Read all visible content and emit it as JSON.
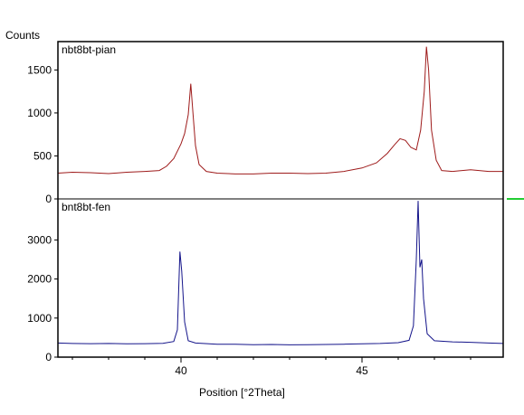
{
  "chart_data": {
    "type": "line",
    "ylabel": "Counts",
    "xlabel": "Position [°2Theta]",
    "xlim": [
      36.6,
      48.9
    ],
    "x_ticks": [
      40,
      45
    ],
    "x_tick_labels": [
      "40",
      "45"
    ],
    "panels": [
      {
        "series_name": "nbt8bt-pian",
        "color": "#9e1b1b",
        "ylim": [
          0,
          1830
        ],
        "y_ticks": [
          0,
          500,
          1000,
          1500
        ],
        "y_tick_labels": [
          "0",
          "500",
          "1000",
          "1500"
        ],
        "points": [
          [
            36.6,
            300
          ],
          [
            37.0,
            310
          ],
          [
            37.5,
            305
          ],
          [
            38.0,
            295
          ],
          [
            38.5,
            310
          ],
          [
            39.0,
            320
          ],
          [
            39.4,
            330
          ],
          [
            39.6,
            380
          ],
          [
            39.8,
            470
          ],
          [
            40.0,
            640
          ],
          [
            40.1,
            760
          ],
          [
            40.2,
            980
          ],
          [
            40.27,
            1340
          ],
          [
            40.33,
            1000
          ],
          [
            40.4,
            620
          ],
          [
            40.5,
            400
          ],
          [
            40.7,
            320
          ],
          [
            41.0,
            300
          ],
          [
            41.5,
            290
          ],
          [
            42.0,
            290
          ],
          [
            42.5,
            300
          ],
          [
            43.0,
            300
          ],
          [
            43.5,
            295
          ],
          [
            44.0,
            300
          ],
          [
            44.5,
            320
          ],
          [
            45.0,
            360
          ],
          [
            45.4,
            420
          ],
          [
            45.7,
            530
          ],
          [
            45.9,
            630
          ],
          [
            46.05,
            700
          ],
          [
            46.2,
            680
          ],
          [
            46.35,
            600
          ],
          [
            46.5,
            570
          ],
          [
            46.62,
            800
          ],
          [
            46.72,
            1250
          ],
          [
            46.78,
            1770
          ],
          [
            46.84,
            1500
          ],
          [
            46.92,
            800
          ],
          [
            47.05,
            450
          ],
          [
            47.2,
            330
          ],
          [
            47.5,
            320
          ],
          [
            48.0,
            340
          ],
          [
            48.5,
            320
          ],
          [
            48.9,
            320
          ]
        ]
      },
      {
        "series_name": "bnt8bt-fen",
        "color": "#14148a",
        "ylim": [
          0,
          4050
        ],
        "y_ticks": [
          0,
          1000,
          2000,
          3000
        ],
        "y_tick_labels": [
          "0",
          "1000",
          "2000",
          "3000"
        ],
        "points": [
          [
            36.6,
            360
          ],
          [
            37.0,
            350
          ],
          [
            37.5,
            345
          ],
          [
            38.0,
            350
          ],
          [
            38.5,
            340
          ],
          [
            39.0,
            345
          ],
          [
            39.5,
            355
          ],
          [
            39.8,
            400
          ],
          [
            39.9,
            700
          ],
          [
            39.97,
            2700
          ],
          [
            40.02,
            2200
          ],
          [
            40.1,
            900
          ],
          [
            40.2,
            420
          ],
          [
            40.4,
            360
          ],
          [
            41.0,
            330
          ],
          [
            41.5,
            330
          ],
          [
            42.0,
            320
          ],
          [
            42.5,
            325
          ],
          [
            43.0,
            315
          ],
          [
            43.5,
            320
          ],
          [
            44.0,
            325
          ],
          [
            44.5,
            330
          ],
          [
            45.0,
            340
          ],
          [
            45.5,
            350
          ],
          [
            46.0,
            370
          ],
          [
            46.3,
            430
          ],
          [
            46.42,
            800
          ],
          [
            46.5,
            2500
          ],
          [
            46.55,
            4000
          ],
          [
            46.6,
            2300
          ],
          [
            46.65,
            2500
          ],
          [
            46.7,
            1500
          ],
          [
            46.8,
            600
          ],
          [
            47.0,
            420
          ],
          [
            47.5,
            390
          ],
          [
            48.0,
            380
          ],
          [
            48.5,
            360
          ],
          [
            48.9,
            350
          ]
        ]
      }
    ],
    "marker_color": "#22cc33"
  }
}
